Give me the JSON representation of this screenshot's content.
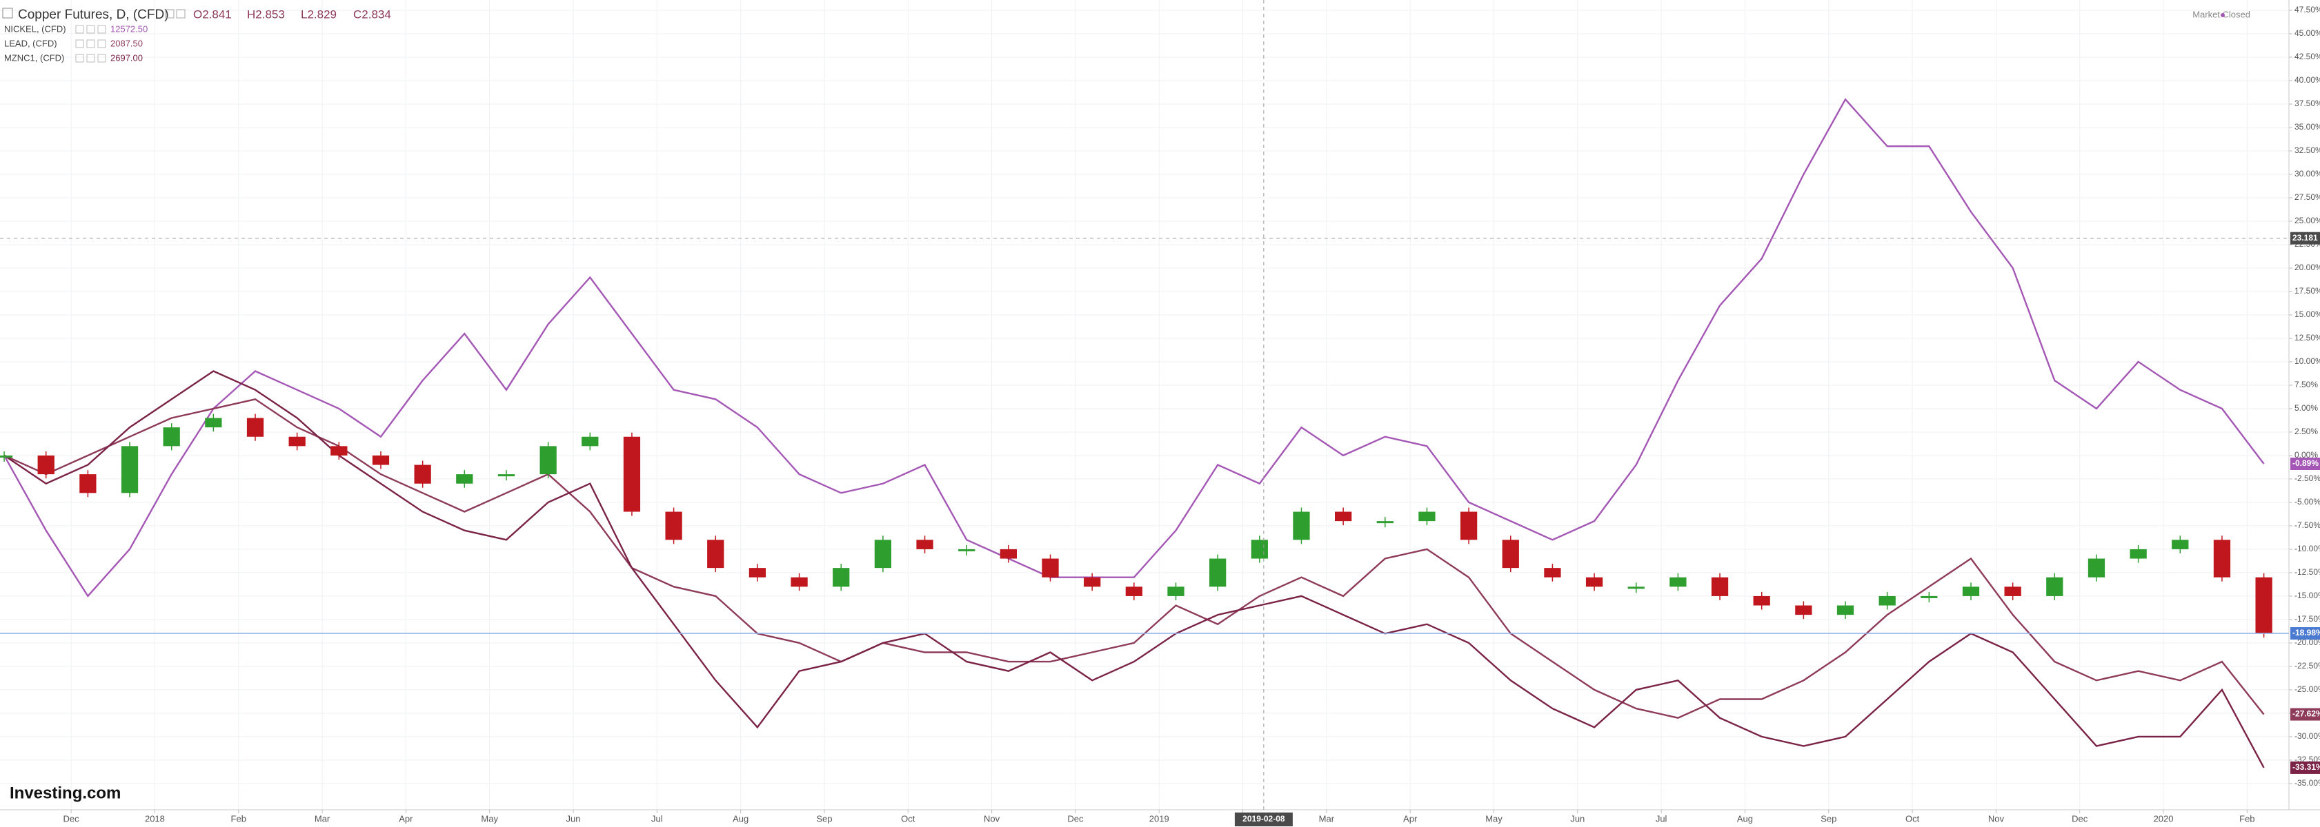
{
  "chart_data": {
    "type": "candlestick-compare",
    "title": "Copper Futures, D, (CFD)",
    "ohlc_labels": [
      "O2.841",
      "H2.853",
      "L2.829",
      "C2.834"
    ],
    "status": "Market Closed",
    "brand": "Investing.com",
    "crosshair": {
      "x": {
        "value": 30.1,
        "label": "2019-02-08"
      },
      "y": 23.181
    },
    "ylim": [
      -37.8,
      48.6
    ],
    "xlim": [
      -0.1,
      54.6
    ],
    "grid": true,
    "yticks": [
      {
        "value": 47.5,
        "label": "47.50%"
      },
      {
        "value": 45,
        "label": "45.00%"
      },
      {
        "value": 42.5,
        "label": "42.50%"
      },
      {
        "value": 40,
        "label": "40.00%"
      },
      {
        "value": 37.5,
        "label": "37.50%"
      },
      {
        "value": 35,
        "label": "35.00%"
      },
      {
        "value": 32.5,
        "label": "32.50%"
      },
      {
        "value": 30,
        "label": "30.00%"
      },
      {
        "value": 27.5,
        "label": "27.50%"
      },
      {
        "value": 25,
        "label": "25.00%"
      },
      {
        "value": 22.5,
        "label": "22.50%"
      },
      {
        "value": 20,
        "label": "20.00%"
      },
      {
        "value": 17.5,
        "label": "17.50%"
      },
      {
        "value": 15,
        "label": "15.00%"
      },
      {
        "value": 12.5,
        "label": "12.50%"
      },
      {
        "value": 10,
        "label": "10.00%"
      },
      {
        "value": 7.5,
        "label": "7.50%"
      },
      {
        "value": 5,
        "label": "5.00%"
      },
      {
        "value": 2.5,
        "label": "2.50%"
      },
      {
        "value": 0,
        "label": "0.00%"
      },
      {
        "value": -2.5,
        "label": "-2.50%"
      },
      {
        "value": -5,
        "label": "-5.00%"
      },
      {
        "value": -7.5,
        "label": "-7.50%"
      },
      {
        "value": -10,
        "label": "-10.00%"
      },
      {
        "value": -12.5,
        "label": "-12.50%"
      },
      {
        "value": -15,
        "label": "-15.00%"
      },
      {
        "value": -17.5,
        "label": "-17.50%"
      },
      {
        "value": -20,
        "label": "-20.00%"
      },
      {
        "value": -22.5,
        "label": "-22.50%"
      },
      {
        "value": -25,
        "label": "-25.00%"
      },
      {
        "value": -27.5,
        "label": "-27.50%"
      },
      {
        "value": -30,
        "label": "-30.00%"
      },
      {
        "value": -32.5,
        "label": "-32.50%"
      },
      {
        "value": -35,
        "label": "-35.00%"
      }
    ],
    "xticks": [
      {
        "value": 1.6,
        "label": "Dec"
      },
      {
        "value": 3.6,
        "label": "2018"
      },
      {
        "value": 5.6,
        "label": "Feb"
      },
      {
        "value": 7.6,
        "label": "Mar"
      },
      {
        "value": 9.6,
        "label": "Apr"
      },
      {
        "value": 11.6,
        "label": "May"
      },
      {
        "value": 13.6,
        "label": "Jun"
      },
      {
        "value": 15.6,
        "label": "Jul"
      },
      {
        "value": 17.6,
        "label": "Aug"
      },
      {
        "value": 19.6,
        "label": "Sep"
      },
      {
        "value": 21.6,
        "label": "Oct"
      },
      {
        "value": 23.6,
        "label": "Nov"
      },
      {
        "value": 25.6,
        "label": "Dec"
      },
      {
        "value": 27.6,
        "label": "2019"
      },
      {
        "value": 29.6,
        "label": "Feb"
      },
      {
        "value": 31.6,
        "label": "Mar"
      },
      {
        "value": 33.6,
        "label": "Apr"
      },
      {
        "value": 35.6,
        "label": "May"
      },
      {
        "value": 37.6,
        "label": "Jun"
      },
      {
        "value": 39.6,
        "label": "Jul"
      },
      {
        "value": 41.6,
        "label": "Aug"
      },
      {
        "value": 43.6,
        "label": "Sep"
      },
      {
        "value": 45.6,
        "label": "Oct"
      },
      {
        "value": 47.6,
        "label": "Nov"
      },
      {
        "value": 49.6,
        "label": "Dec"
      },
      {
        "value": 51.6,
        "label": "2020"
      },
      {
        "value": 53.6,
        "label": "Feb"
      }
    ],
    "series": [
      {
        "name": "Copper Futures, D, (CFD)",
        "style": "candle",
        "color": "#2e9e2e",
        "down_color": "#c0161d",
        "values": [
          0,
          -2,
          -4,
          1,
          3,
          4,
          2,
          1,
          0,
          -1,
          -3,
          -2,
          -2,
          1,
          2,
          -6,
          -9,
          -12,
          -13,
          -14,
          -12,
          -9,
          -10,
          -10,
          -11,
          -13,
          -14,
          -15,
          -14,
          -11,
          -9,
          -6,
          -7,
          -7,
          -6,
          -9,
          -12,
          -13,
          -14,
          -14,
          -13,
          -15,
          -16,
          -17,
          -16,
          -15,
          -15,
          -14,
          -15,
          -13,
          -11,
          -10,
          -9,
          -13,
          -18.98
        ],
        "value_labels": [
          null,
          null,
          null,
          null,
          null,
          null,
          null,
          null,
          null,
          null,
          null,
          null,
          null,
          null,
          null,
          null,
          null,
          null,
          null,
          null,
          null,
          null,
          null,
          null,
          null,
          null,
          null,
          null,
          null,
          null,
          null,
          null,
          null,
          null,
          null,
          null,
          null,
          null,
          null,
          null,
          null,
          null,
          null,
          null,
          null,
          null,
          null,
          null,
          null,
          null,
          null,
          null,
          null,
          null,
          "-18.98%"
        ]
      },
      {
        "name": "NICKEL, (CFD)",
        "price": "12572.50",
        "style": "line",
        "color": "#a457b5",
        "values": [
          0,
          -8,
          -15,
          -10,
          -2,
          5,
          9,
          7,
          5,
          2,
          8,
          13,
          7,
          14,
          19,
          13,
          7,
          6,
          3,
          -2,
          -4,
          -3,
          -1,
          -9,
          -11,
          -13,
          -13,
          -13,
          -8,
          -1,
          -3,
          3,
          0,
          2,
          1,
          -5,
          -7,
          -9,
          -7,
          -1,
          8,
          16,
          21,
          30,
          38,
          33,
          33,
          26,
          20,
          8,
          5,
          10,
          7,
          5,
          -0.89
        ],
        "value_labels": [
          null,
          null,
          null,
          null,
          null,
          null,
          null,
          null,
          null,
          null,
          null,
          null,
          null,
          null,
          null,
          null,
          null,
          null,
          null,
          null,
          null,
          null,
          null,
          null,
          null,
          null,
          null,
          null,
          null,
          null,
          null,
          null,
          null,
          null,
          null,
          null,
          null,
          null,
          null,
          null,
          null,
          null,
          null,
          null,
          null,
          null,
          null,
          null,
          null,
          null,
          null,
          null,
          null,
          null,
          "-0.89%"
        ]
      },
      {
        "name": "LEAD, (CFD)",
        "price": "2087.50",
        "style": "line",
        "color": "#8e3a59",
        "values": [
          0,
          -2,
          0,
          2,
          4,
          5,
          6,
          3,
          1,
          -2,
          -4,
          -6,
          -4,
          -2,
          -6,
          -12,
          -14,
          -15,
          -19,
          -20,
          -22,
          -20,
          -21,
          -21,
          -22,
          -22,
          -21,
          -20,
          -16,
          -18,
          -15,
          -13,
          -15,
          -11,
          -10,
          -13,
          -19,
          -22,
          -25,
          -27,
          -28,
          -26,
          -26,
          -24,
          -21,
          -17,
          -14,
          -11,
          -17,
          -22,
          -24,
          -23,
          -24,
          -22,
          -27.62
        ],
        "value_labels": [
          null,
          null,
          null,
          null,
          null,
          null,
          null,
          null,
          null,
          null,
          null,
          null,
          null,
          null,
          null,
          null,
          null,
          null,
          null,
          null,
          null,
          null,
          null,
          null,
          null,
          null,
          null,
          null,
          null,
          null,
          null,
          null,
          null,
          null,
          null,
          null,
          null,
          null,
          null,
          null,
          null,
          null,
          null,
          null,
          null,
          null,
          null,
          null,
          null,
          null,
          null,
          null,
          null,
          null,
          "-27.62%"
        ]
      },
      {
        "name": "MZNC1, (CFD)",
        "price": "2697.00",
        "style": "line",
        "color": "#7b2346",
        "values": [
          0,
          -3,
          -1,
          3,
          6,
          9,
          7,
          4,
          0,
          -3,
          -6,
          -8,
          -9,
          -5,
          -3,
          -12,
          -18,
          -24,
          -29,
          -23,
          -22,
          -20,
          -19,
          -22,
          -23,
          -21,
          -24,
          -22,
          -19,
          -17,
          -16,
          -15,
          -17,
          -19,
          -18,
          -20,
          -24,
          -27,
          -29,
          -25,
          -24,
          -28,
          -30,
          -31,
          -30,
          -26,
          -22,
          -19,
          -21,
          -26,
          -31,
          -30,
          -30,
          -25,
          -33.31
        ],
        "value_labels": [
          null,
          null,
          null,
          null,
          null,
          null,
          null,
          null,
          null,
          null,
          null,
          null,
          null,
          null,
          null,
          null,
          null,
          null,
          null,
          null,
          null,
          null,
          null,
          null,
          null,
          null,
          null,
          null,
          null,
          null,
          null,
          null,
          null,
          null,
          null,
          null,
          null,
          null,
          null,
          null,
          null,
          null,
          null,
          null,
          null,
          null,
          null,
          null,
          null,
          null,
          null,
          null,
          null,
          null,
          "-33.31%"
        ]
      }
    ]
  }
}
